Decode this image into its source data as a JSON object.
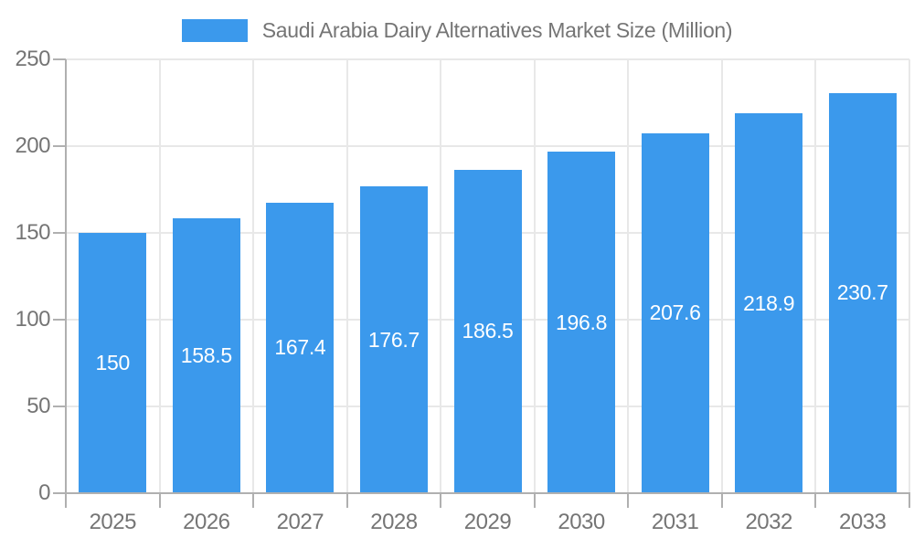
{
  "legend": {
    "label": "Saudi Arabia Dairy Alternatives Market Size (Million)"
  },
  "chart_data": {
    "type": "bar",
    "title": "Saudi Arabia Dairy Alternatives Market Size (Million)",
    "series_name": "Saudi Arabia Dairy Alternatives Market Size (Million)",
    "categories": [
      "2025",
      "2026",
      "2027",
      "2028",
      "2029",
      "2030",
      "2031",
      "2032",
      "2033"
    ],
    "values": [
      150,
      158.5,
      167.4,
      176.7,
      186.5,
      196.8,
      207.6,
      218.9,
      230.7
    ],
    "value_labels": [
      "150",
      "158.5",
      "167.4",
      "176.7",
      "186.5",
      "196.8",
      "207.6",
      "218.9",
      "230.7"
    ],
    "xlabel": "",
    "ylabel": "",
    "ylim": [
      0,
      250
    ],
    "yticks": [
      0,
      50,
      100,
      150,
      200,
      250
    ],
    "grid": true,
    "legend_position": "top-center",
    "value_label_position": "inside-center",
    "colors": {
      "bar": "#3B99EC",
      "axis": "#B0B0B0",
      "grid": "#E8E8E8",
      "text": "#757575",
      "value_label": "#FFFFFF",
      "background": "#FFFFFF"
    }
  }
}
